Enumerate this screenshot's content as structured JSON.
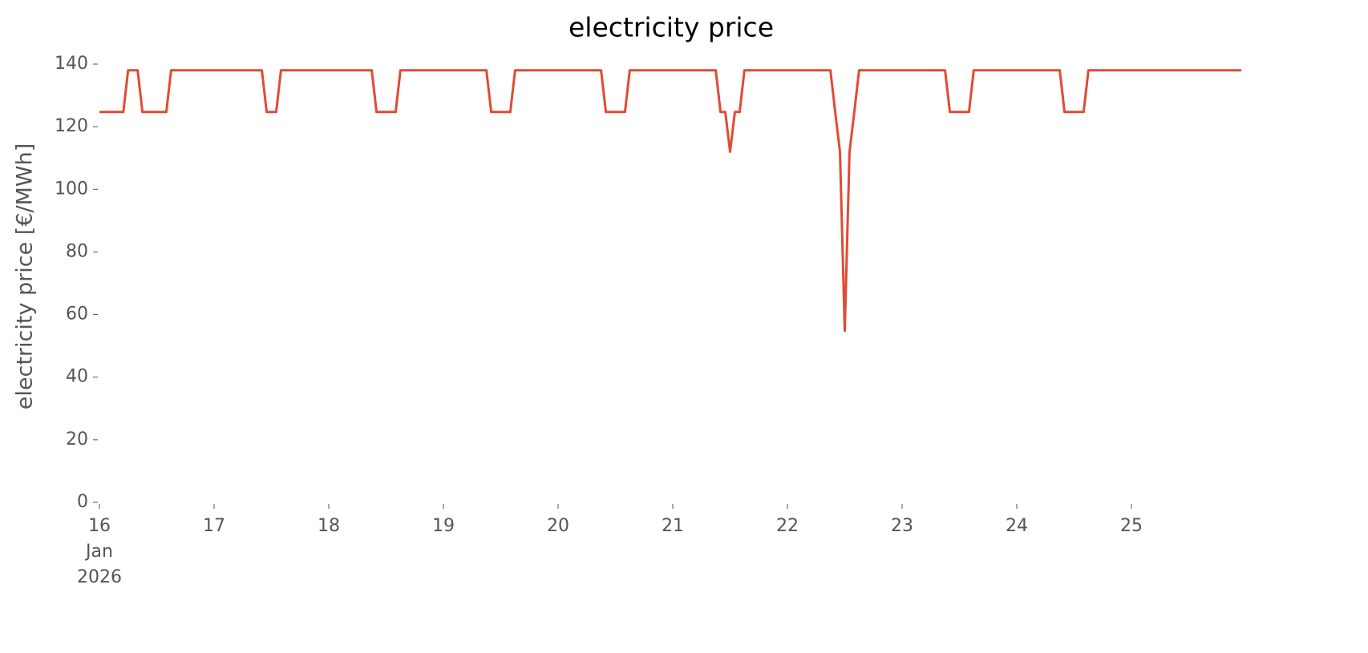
{
  "chart_data": {
    "type": "line",
    "title": "electricity price",
    "y_label": "electricity price [€/MWh]",
    "color": "#e24a33",
    "x": [
      "2026-01-16 00:00",
      "2026-01-16 01:00",
      "2026-01-16 02:00",
      "2026-01-16 03:00",
      "2026-01-16 04:00",
      "2026-01-16 05:00",
      "2026-01-16 06:00",
      "2026-01-16 07:00",
      "2026-01-16 08:00",
      "2026-01-16 09:00",
      "2026-01-16 10:00",
      "2026-01-16 11:00",
      "2026-01-16 12:00",
      "2026-01-16 13:00",
      "2026-01-16 14:00",
      "2026-01-16 15:00",
      "2026-01-16 16:00",
      "2026-01-16 17:00",
      "2026-01-16 18:00",
      "2026-01-16 19:00",
      "2026-01-16 20:00",
      "2026-01-16 21:00",
      "2026-01-16 22:00",
      "2026-01-16 23:00",
      "2026-01-17 00:00",
      "2026-01-17 01:00",
      "2026-01-17 02:00",
      "2026-01-17 03:00",
      "2026-01-17 04:00",
      "2026-01-17 05:00",
      "2026-01-17 06:00",
      "2026-01-17 07:00",
      "2026-01-17 08:00",
      "2026-01-17 09:00",
      "2026-01-17 10:00",
      "2026-01-17 11:00",
      "2026-01-17 12:00",
      "2026-01-17 13:00",
      "2026-01-17 14:00",
      "2026-01-17 15:00",
      "2026-01-17 16:00",
      "2026-01-17 17:00",
      "2026-01-17 18:00",
      "2026-01-17 19:00",
      "2026-01-17 20:00",
      "2026-01-17 21:00",
      "2026-01-17 22:00",
      "2026-01-17 23:00",
      "2026-01-18 00:00",
      "2026-01-18 01:00",
      "2026-01-18 02:00",
      "2026-01-18 03:00",
      "2026-01-18 04:00",
      "2026-01-18 05:00",
      "2026-01-18 06:00",
      "2026-01-18 07:00",
      "2026-01-18 08:00",
      "2026-01-18 09:00",
      "2026-01-18 10:00",
      "2026-01-18 11:00",
      "2026-01-18 12:00",
      "2026-01-18 13:00",
      "2026-01-18 14:00",
      "2026-01-18 15:00",
      "2026-01-18 16:00",
      "2026-01-18 17:00",
      "2026-01-18 18:00",
      "2026-01-18 19:00",
      "2026-01-18 20:00",
      "2026-01-18 21:00",
      "2026-01-18 22:00",
      "2026-01-18 23:00",
      "2026-01-19 00:00",
      "2026-01-19 01:00",
      "2026-01-19 02:00",
      "2026-01-19 03:00",
      "2026-01-19 04:00",
      "2026-01-19 05:00",
      "2026-01-19 06:00",
      "2026-01-19 07:00",
      "2026-01-19 08:00",
      "2026-01-19 09:00",
      "2026-01-19 10:00",
      "2026-01-19 11:00",
      "2026-01-19 12:00",
      "2026-01-19 13:00",
      "2026-01-19 14:00",
      "2026-01-19 15:00",
      "2026-01-19 16:00",
      "2026-01-19 17:00",
      "2026-01-19 18:00",
      "2026-01-19 19:00",
      "2026-01-19 20:00",
      "2026-01-19 21:00",
      "2026-01-19 22:00",
      "2026-01-19 23:00",
      "2026-01-20 00:00",
      "2026-01-20 01:00",
      "2026-01-20 02:00",
      "2026-01-20 03:00",
      "2026-01-20 04:00",
      "2026-01-20 05:00",
      "2026-01-20 06:00",
      "2026-01-20 07:00",
      "2026-01-20 08:00",
      "2026-01-20 09:00",
      "2026-01-20 10:00",
      "2026-01-20 11:00",
      "2026-01-20 12:00",
      "2026-01-20 13:00",
      "2026-01-20 14:00",
      "2026-01-20 15:00",
      "2026-01-20 16:00",
      "2026-01-20 17:00",
      "2026-01-20 18:00",
      "2026-01-20 19:00",
      "2026-01-20 20:00",
      "2026-01-20 21:00",
      "2026-01-20 22:00",
      "2026-01-20 23:00",
      "2026-01-21 00:00",
      "2026-01-21 01:00",
      "2026-01-21 02:00",
      "2026-01-21 03:00",
      "2026-01-21 04:00",
      "2026-01-21 05:00",
      "2026-01-21 06:00",
      "2026-01-21 07:00",
      "2026-01-21 08:00",
      "2026-01-21 09:00",
      "2026-01-21 10:00",
      "2026-01-21 11:00",
      "2026-01-21 12:00",
      "2026-01-21 13:00",
      "2026-01-21 14:00",
      "2026-01-21 15:00",
      "2026-01-21 16:00",
      "2026-01-21 17:00",
      "2026-01-21 18:00",
      "2026-01-21 19:00",
      "2026-01-21 20:00",
      "2026-01-21 21:00",
      "2026-01-21 22:00",
      "2026-01-21 23:00",
      "2026-01-22 00:00",
      "2026-01-22 01:00",
      "2026-01-22 02:00",
      "2026-01-22 03:00",
      "2026-01-22 04:00",
      "2026-01-22 05:00",
      "2026-01-22 06:00",
      "2026-01-22 07:00",
      "2026-01-22 08:00",
      "2026-01-22 09:00",
      "2026-01-22 10:00",
      "2026-01-22 11:00",
      "2026-01-22 12:00",
      "2026-01-22 13:00",
      "2026-01-22 14:00",
      "2026-01-22 15:00",
      "2026-01-22 16:00",
      "2026-01-22 17:00",
      "2026-01-22 18:00",
      "2026-01-22 19:00",
      "2026-01-22 20:00",
      "2026-01-22 21:00",
      "2026-01-22 22:00",
      "2026-01-22 23:00",
      "2026-01-23 00:00",
      "2026-01-23 01:00",
      "2026-01-23 02:00",
      "2026-01-23 03:00",
      "2026-01-23 04:00",
      "2026-01-23 05:00",
      "2026-01-23 06:00",
      "2026-01-23 07:00",
      "2026-01-23 08:00",
      "2026-01-23 09:00",
      "2026-01-23 10:00",
      "2026-01-23 11:00",
      "2026-01-23 12:00",
      "2026-01-23 13:00",
      "2026-01-23 14:00",
      "2026-01-23 15:00",
      "2026-01-23 16:00",
      "2026-01-23 17:00",
      "2026-01-23 18:00",
      "2026-01-23 19:00",
      "2026-01-23 20:00",
      "2026-01-23 21:00",
      "2026-01-23 22:00",
      "2026-01-23 23:00",
      "2026-01-24 00:00",
      "2026-01-24 01:00",
      "2026-01-24 02:00",
      "2026-01-24 03:00",
      "2026-01-24 04:00",
      "2026-01-24 05:00",
      "2026-01-24 06:00",
      "2026-01-24 07:00",
      "2026-01-24 08:00",
      "2026-01-24 09:00",
      "2026-01-24 10:00",
      "2026-01-24 11:00",
      "2026-01-24 12:00",
      "2026-01-24 13:00",
      "2026-01-24 14:00",
      "2026-01-24 15:00",
      "2026-01-24 16:00",
      "2026-01-24 17:00",
      "2026-01-24 18:00",
      "2026-01-24 19:00",
      "2026-01-24 20:00",
      "2026-01-24 21:00",
      "2026-01-24 22:00",
      "2026-01-24 23:00",
      "2026-01-25 00:00",
      "2026-01-25 01:00",
      "2026-01-25 02:00",
      "2026-01-25 03:00",
      "2026-01-25 04:00",
      "2026-01-25 05:00",
      "2026-01-25 06:00",
      "2026-01-25 07:00",
      "2026-01-25 08:00",
      "2026-01-25 09:00",
      "2026-01-25 10:00",
      "2026-01-25 11:00",
      "2026-01-25 12:00",
      "2026-01-25 13:00",
      "2026-01-25 14:00",
      "2026-01-25 15:00",
      "2026-01-25 16:00",
      "2026-01-25 17:00",
      "2026-01-25 18:00",
      "2026-01-25 19:00",
      "2026-01-25 20:00",
      "2026-01-25 21:00",
      "2026-01-25 22:00",
      "2026-01-25 23:00"
    ],
    "values": [
      124.7,
      124.7,
      124.7,
      124.7,
      124.7,
      124.7,
      138,
      138,
      138,
      124.7,
      124.7,
      124.7,
      124.7,
      124.7,
      124.7,
      138,
      138,
      138,
      138,
      138,
      138,
      138,
      138,
      138,
      138,
      138,
      138,
      138,
      138,
      138,
      138,
      138,
      138,
      138,
      138,
      124.7,
      124.7,
      124.7,
      138,
      138,
      138,
      138,
      138,
      138,
      138,
      138,
      138,
      138,
      138,
      138,
      138,
      138,
      138,
      138,
      138,
      138,
      138,
      138,
      124.7,
      124.7,
      124.7,
      124.7,
      124.7,
      138,
      138,
      138,
      138,
      138,
      138,
      138,
      138,
      138,
      138,
      138,
      138,
      138,
      138,
      138,
      138,
      138,
      138,
      138,
      124.7,
      124.7,
      124.7,
      124.7,
      124.7,
      138,
      138,
      138,
      138,
      138,
      138,
      138,
      138,
      138,
      138,
      138,
      138,
      138,
      138,
      138,
      138,
      138,
      138,
      138,
      124.7,
      124.7,
      124.7,
      124.7,
      124.7,
      138,
      138,
      138,
      138,
      138,
      138,
      138,
      138,
      138,
      138,
      138,
      138,
      138,
      138,
      138,
      138,
      138,
      138,
      138,
      124.7,
      124.7,
      112,
      124.7,
      124.7,
      138,
      138,
      138,
      138,
      138,
      138,
      138,
      138,
      138,
      138,
      138,
      138,
      138,
      138,
      138,
      138,
      138,
      138,
      138,
      124.7,
      112,
      54.8,
      112,
      124.7,
      138,
      138,
      138,
      138,
      138,
      138,
      138,
      138,
      138,
      138,
      138,
      138,
      138,
      138,
      138,
      138,
      138,
      138,
      138,
      124.7,
      124.7,
      124.7,
      124.7,
      124.7,
      138,
      138,
      138,
      138,
      138,
      138,
      138,
      138,
      138,
      138,
      138,
      138,
      138,
      138,
      138,
      138,
      138,
      138,
      138,
      124.7,
      124.7,
      124.7,
      124.7,
      124.7,
      138,
      138,
      138,
      138,
      138,
      138,
      138,
      138,
      138,
      138,
      138,
      138,
      138,
      138,
      138,
      138,
      138,
      138,
      138,
      138,
      138,
      138,
      138,
      138,
      138,
      138,
      138,
      138,
      138,
      138,
      138,
      138,
      138
    ],
    "xlim": [
      "2026-01-16 00:00",
      "2026-01-25 23:00"
    ],
    "xticks": [
      {
        "value": "2026-01-16 00:00",
        "label": "16\nJan\n2026"
      },
      {
        "value": "2026-01-17 00:00",
        "label": "17"
      },
      {
        "value": "2026-01-18 00:00",
        "label": "18"
      },
      {
        "value": "2026-01-19 00:00",
        "label": "19"
      },
      {
        "value": "2026-01-20 00:00",
        "label": "20"
      },
      {
        "value": "2026-01-21 00:00",
        "label": "21"
      },
      {
        "value": "2026-01-22 00:00",
        "label": "22"
      },
      {
        "value": "2026-01-23 00:00",
        "label": "23"
      },
      {
        "value": "2026-01-24 00:00",
        "label": "24"
      },
      {
        "value": "2026-01-25 00:00",
        "label": "25"
      }
    ],
    "ylim": [
      0,
      140
    ],
    "yticks": [
      0,
      20,
      40,
      60,
      80,
      100,
      120,
      140
    ],
    "grid": false
  }
}
